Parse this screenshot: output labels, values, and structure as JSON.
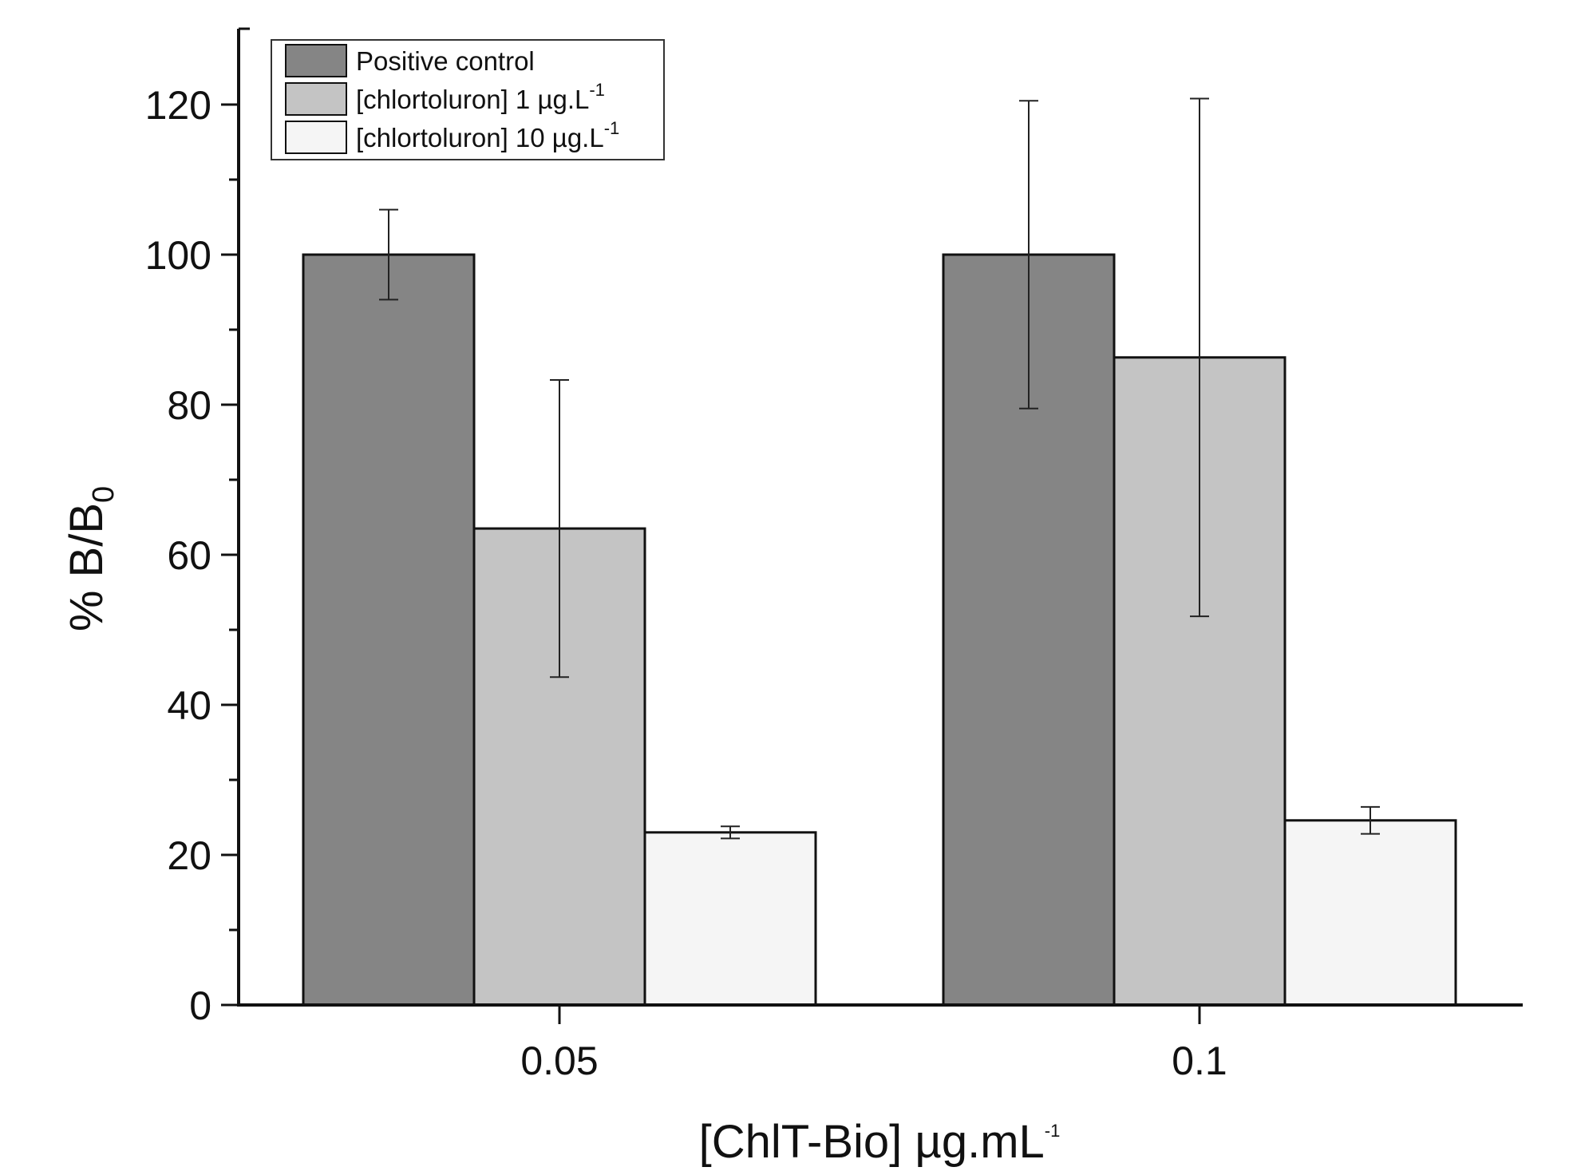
{
  "chart_data": {
    "type": "bar",
    "categories": [
      "0.05",
      "0.1"
    ],
    "series": [
      {
        "name": "Positive control",
        "legend_main": "Positive control",
        "legend_sup": "",
        "values": [
          100,
          100
        ],
        "err": [
          6,
          20.5
        ],
        "color": "#858585"
      },
      {
        "name": "[chlortoluron] 1 µg.L-1",
        "legend_main": "[chlortoluron] 1 µg.L",
        "legend_sup": "-1",
        "values": [
          63.5,
          86.3
        ],
        "err": [
          19.8,
          34.5
        ],
        "color": "#c4c4c4"
      },
      {
        "name": "[chlortoluron] 10 µg.L-1",
        "legend_main": "[chlortoluron] 10 µg.L",
        "legend_sup": "-1",
        "values": [
          23,
          24.6
        ],
        "err": [
          0.8,
          1.8
        ],
        "color": "#f5f5f5"
      }
    ],
    "ylim": [
      0,
      130
    ],
    "yticks": [
      0,
      20,
      40,
      60,
      80,
      100,
      120
    ],
    "yticks_labels": [
      "0",
      "20",
      "40",
      "60",
      "80",
      "100",
      "120"
    ],
    "xlabel": {
      "main": "[ChlT-Bio] µg.mL",
      "sup": "-1"
    },
    "ylabel": {
      "main": "% B/B",
      "sub": "0"
    },
    "legend_position": "top-left",
    "grid": false,
    "title": ""
  }
}
